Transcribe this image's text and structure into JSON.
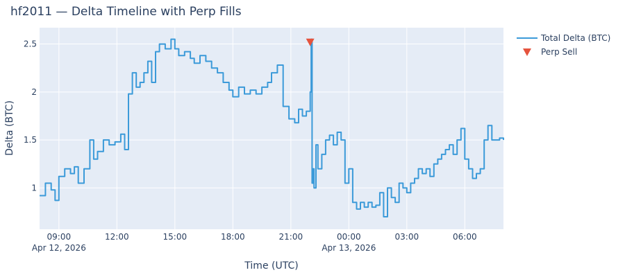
{
  "chart_data": {
    "type": "line",
    "title": "hf2011 — Delta Timeline with Perp Fills",
    "xlabel": "Time (UTC)",
    "ylabel": "Delta (BTC)",
    "x_range_hours": [
      8.0,
      32.0
    ],
    "ylim": [
      0.57,
      2.67
    ],
    "x_ticks": [
      {
        "hour": 9,
        "label": "09:00",
        "date": "Apr 12, 2026"
      },
      {
        "hour": 12,
        "label": "12:00",
        "date": ""
      },
      {
        "hour": 15,
        "label": "15:00",
        "date": ""
      },
      {
        "hour": 18,
        "label": "18:00",
        "date": ""
      },
      {
        "hour": 21,
        "label": "21:00",
        "date": ""
      },
      {
        "hour": 24,
        "label": "00:00",
        "date": "Apr 13, 2026"
      },
      {
        "hour": 27,
        "label": "03:00",
        "date": ""
      },
      {
        "hour": 30,
        "label": "06:00",
        "date": ""
      }
    ],
    "y_ticks": [
      {
        "value": 1,
        "label": "1"
      },
      {
        "value": 1.5,
        "label": "1.5"
      },
      {
        "value": 2,
        "label": "2"
      },
      {
        "value": 2.5,
        "label": "2.5"
      }
    ],
    "series": [
      {
        "name": "Total Delta (BTC)",
        "mode": "line",
        "color": "#3b9ad9",
        "x": [
          8.0,
          8.3,
          8.6,
          8.8,
          9.0,
          9.3,
          9.6,
          9.8,
          10.0,
          10.3,
          10.6,
          10.8,
          11.0,
          11.3,
          11.6,
          11.9,
          12.2,
          12.4,
          12.6,
          12.8,
          13.0,
          13.2,
          13.4,
          13.6,
          13.8,
          14.0,
          14.2,
          14.5,
          14.8,
          15.0,
          15.2,
          15.5,
          15.8,
          16.0,
          16.3,
          16.6,
          16.9,
          17.2,
          17.5,
          17.8,
          18.0,
          18.3,
          18.6,
          18.9,
          19.2,
          19.5,
          19.8,
          20.0,
          20.3,
          20.6,
          20.9,
          21.2,
          21.4,
          21.6,
          21.8,
          22.0,
          22.05,
          22.1,
          22.15,
          22.2,
          22.3,
          22.4,
          22.6,
          22.8,
          23.0,
          23.2,
          23.4,
          23.6,
          23.8,
          24.0,
          24.2,
          24.4,
          24.6,
          24.8,
          25.0,
          25.2,
          25.4,
          25.6,
          25.8,
          26.0,
          26.2,
          26.4,
          26.6,
          26.8,
          27.0,
          27.2,
          27.4,
          27.6,
          27.8,
          28.0,
          28.2,
          28.4,
          28.6,
          28.8,
          29.0,
          29.2,
          29.4,
          29.6,
          29.8,
          30.0,
          30.2,
          30.4,
          30.6,
          30.8,
          31.0,
          31.2,
          31.4,
          31.6,
          31.8,
          32.0
        ],
        "y": [
          0.92,
          1.05,
          0.98,
          0.87,
          1.12,
          1.2,
          1.15,
          1.22,
          1.05,
          1.2,
          1.5,
          1.3,
          1.38,
          1.5,
          1.45,
          1.48,
          1.56,
          1.4,
          1.98,
          2.2,
          2.05,
          2.1,
          2.2,
          2.32,
          2.1,
          2.42,
          2.5,
          2.45,
          2.55,
          2.45,
          2.38,
          2.42,
          2.35,
          2.3,
          2.38,
          2.32,
          2.25,
          2.2,
          2.1,
          2.02,
          1.95,
          2.05,
          1.98,
          2.02,
          1.98,
          2.05,
          2.1,
          2.2,
          2.28,
          1.85,
          1.72,
          1.68,
          1.82,
          1.75,
          1.8,
          2.0,
          2.55,
          1.05,
          1.2,
          1.0,
          1.45,
          1.2,
          1.35,
          1.5,
          1.55,
          1.45,
          1.58,
          1.5,
          1.05,
          1.2,
          0.85,
          0.78,
          0.85,
          0.8,
          0.85,
          0.8,
          0.82,
          0.95,
          0.7,
          1.0,
          0.9,
          0.85,
          1.05,
          1.0,
          0.95,
          1.05,
          1.1,
          1.2,
          1.15,
          1.2,
          1.12,
          1.25,
          1.3,
          1.35,
          1.4,
          1.45,
          1.35,
          1.5,
          1.62,
          1.3,
          1.2,
          1.1,
          1.15,
          1.2,
          1.5,
          1.65,
          1.5,
          1.5,
          1.52,
          1.5
        ]
      },
      {
        "name": "Perp Sell",
        "mode": "markers",
        "marker": "triangle-down",
        "color": "#e5533d",
        "x": [
          22.0
        ],
        "y": [
          2.52
        ]
      }
    ],
    "legend_position": "top-right"
  }
}
